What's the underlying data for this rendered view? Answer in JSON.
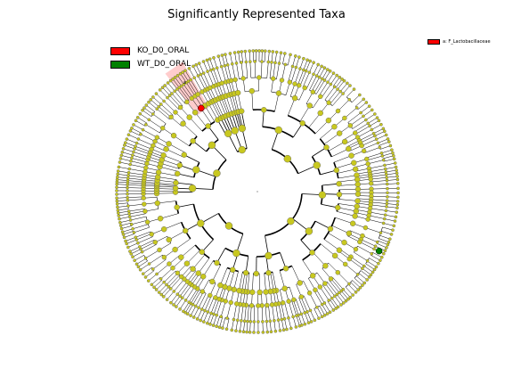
{
  "title": "Significantly Represented Taxa",
  "legend": {
    "items": [
      {
        "label": "KO_D0_ORAL",
        "color": "#ff0000"
      },
      {
        "label": "WT_D0_ORAL",
        "color": "#008000"
      }
    ],
    "placement": "top-left"
  },
  "taxon_legend": {
    "items": [
      {
        "label": "a: F_Lactobacillaceae",
        "color": "#ff0000"
      }
    ],
    "placement": "top-right"
  },
  "chart_data": {
    "type": "cladogram",
    "title": "Significantly Represented Taxa",
    "groups": [
      {
        "name": "KO_D0_ORAL",
        "color": "#ff0000"
      },
      {
        "name": "WT_D0_ORAL",
        "color": "#008000"
      }
    ],
    "highlighted_taxa": [
      {
        "label": "a",
        "taxon": "F_Lactobacillaceae",
        "group": "KO_D0_ORAL",
        "color": "#ff0000"
      }
    ],
    "enriched_markers": [
      {
        "group": "KO_D0_ORAL",
        "count": 1
      },
      {
        "group": "WT_D0_ORAL",
        "count": 1
      }
    ],
    "node_color_default": "#c8c820",
    "levels": 6
  }
}
